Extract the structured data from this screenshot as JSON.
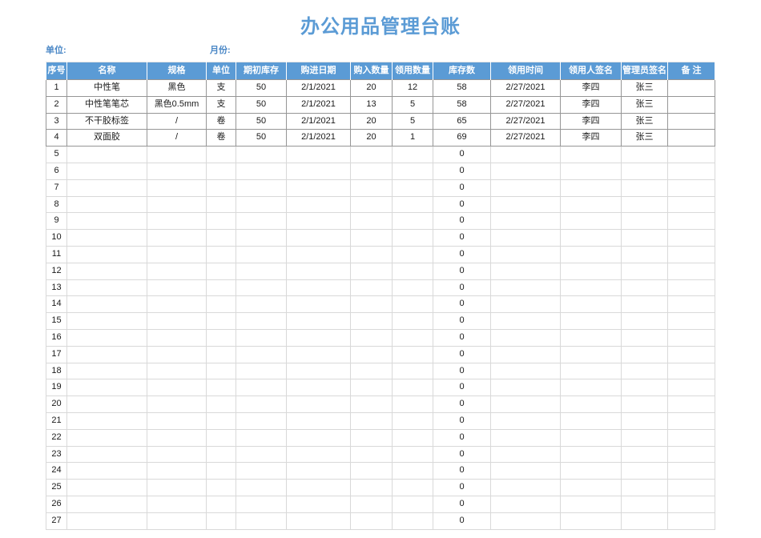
{
  "page": {
    "title": "办公用品管理台账",
    "unit_label": "单位:",
    "month_label": "月份:"
  },
  "colors": {
    "accent_blue": "#5b9bd5",
    "header_text": "#ffffff",
    "filled_row_border": "#969696",
    "empty_row_border": "#d9d9d9"
  },
  "table": {
    "headers": [
      "序号",
      "名称",
      "规格",
      "单位",
      "期初库存",
      "购进日期",
      "购入数量",
      "领用数量",
      "库存数",
      "领用时间",
      "领用人签名",
      "管理员签名",
      "备 注"
    ],
    "filled_row_count": 4,
    "rows": [
      [
        "1",
        "中性笔",
        "黑色",
        "支",
        "50",
        "2/1/2021",
        "20",
        "12",
        "58",
        "2/27/2021",
        "李四",
        "张三",
        ""
      ],
      [
        "2",
        "中性笔笔芯",
        "黑色0.5mm",
        "支",
        "50",
        "2/1/2021",
        "13",
        "5",
        "58",
        "2/27/2021",
        "李四",
        "张三",
        ""
      ],
      [
        "3",
        "不干胶标签",
        "/",
        "卷",
        "50",
        "2/1/2021",
        "20",
        "5",
        "65",
        "2/27/2021",
        "李四",
        "张三",
        ""
      ],
      [
        "4",
        "双面胶",
        "/",
        "卷",
        "50",
        "2/1/2021",
        "20",
        "1",
        "69",
        "2/27/2021",
        "李四",
        "张三",
        ""
      ],
      [
        "5",
        "",
        "",
        "",
        "",
        "",
        "",
        "",
        "0",
        "",
        "",
        "",
        ""
      ],
      [
        "6",
        "",
        "",
        "",
        "",
        "",
        "",
        "",
        "0",
        "",
        "",
        "",
        ""
      ],
      [
        "7",
        "",
        "",
        "",
        "",
        "",
        "",
        "",
        "0",
        "",
        "",
        "",
        ""
      ],
      [
        "8",
        "",
        "",
        "",
        "",
        "",
        "",
        "",
        "0",
        "",
        "",
        "",
        ""
      ],
      [
        "9",
        "",
        "",
        "",
        "",
        "",
        "",
        "",
        "0",
        "",
        "",
        "",
        ""
      ],
      [
        "10",
        "",
        "",
        "",
        "",
        "",
        "",
        "",
        "0",
        "",
        "",
        "",
        ""
      ],
      [
        "11",
        "",
        "",
        "",
        "",
        "",
        "",
        "",
        "0",
        "",
        "",
        "",
        ""
      ],
      [
        "12",
        "",
        "",
        "",
        "",
        "",
        "",
        "",
        "0",
        "",
        "",
        "",
        ""
      ],
      [
        "13",
        "",
        "",
        "",
        "",
        "",
        "",
        "",
        "0",
        "",
        "",
        "",
        ""
      ],
      [
        "14",
        "",
        "",
        "",
        "",
        "",
        "",
        "",
        "0",
        "",
        "",
        "",
        ""
      ],
      [
        "15",
        "",
        "",
        "",
        "",
        "",
        "",
        "",
        "0",
        "",
        "",
        "",
        ""
      ],
      [
        "16",
        "",
        "",
        "",
        "",
        "",
        "",
        "",
        "0",
        "",
        "",
        "",
        ""
      ],
      [
        "17",
        "",
        "",
        "",
        "",
        "",
        "",
        "",
        "0",
        "",
        "",
        "",
        ""
      ],
      [
        "18",
        "",
        "",
        "",
        "",
        "",
        "",
        "",
        "0",
        "",
        "",
        "",
        ""
      ],
      [
        "19",
        "",
        "",
        "",
        "",
        "",
        "",
        "",
        "0",
        "",
        "",
        "",
        ""
      ],
      [
        "20",
        "",
        "",
        "",
        "",
        "",
        "",
        "",
        "0",
        "",
        "",
        "",
        ""
      ],
      [
        "21",
        "",
        "",
        "",
        "",
        "",
        "",
        "",
        "0",
        "",
        "",
        "",
        ""
      ],
      [
        "22",
        "",
        "",
        "",
        "",
        "",
        "",
        "",
        "0",
        "",
        "",
        "",
        ""
      ],
      [
        "23",
        "",
        "",
        "",
        "",
        "",
        "",
        "",
        "0",
        "",
        "",
        "",
        ""
      ],
      [
        "24",
        "",
        "",
        "",
        "",
        "",
        "",
        "",
        "0",
        "",
        "",
        "",
        ""
      ],
      [
        "25",
        "",
        "",
        "",
        "",
        "",
        "",
        "",
        "0",
        "",
        "",
        "",
        ""
      ],
      [
        "26",
        "",
        "",
        "",
        "",
        "",
        "",
        "",
        "0",
        "",
        "",
        "",
        ""
      ],
      [
        "27",
        "",
        "",
        "",
        "",
        "",
        "",
        "",
        "0",
        "",
        "",
        "",
        ""
      ]
    ]
  }
}
